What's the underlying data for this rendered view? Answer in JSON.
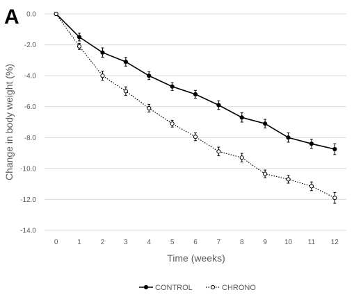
{
  "panel_label": "A",
  "chart_data": {
    "type": "line",
    "x": [
      0,
      1,
      2,
      3,
      4,
      5,
      6,
      7,
      8,
      9,
      10,
      11,
      12
    ],
    "xticks": [
      "0",
      "1",
      "2",
      "3",
      "4",
      "5",
      "6",
      "7",
      "8",
      "9",
      "10",
      "11",
      "12"
    ],
    "xlabel": "Time (weeks)",
    "ylabel": "Change in body weight (%)",
    "ylim": [
      -14,
      0
    ],
    "yticks": [
      "0.0",
      "-2.0",
      "-4.0",
      "-6.0",
      "-8.0",
      "-10.0",
      "-12.0",
      "-14.0"
    ],
    "grid": true,
    "legend_position": "bottom",
    "series": [
      {
        "name": "CONTROL",
        "values": [
          0,
          -1.5,
          -2.5,
          -3.1,
          -4.0,
          -4.7,
          -5.2,
          -5.9,
          -6.7,
          -7.1,
          -8.0,
          -8.4,
          -8.75
        ],
        "errors": [
          0,
          0.25,
          0.3,
          0.28,
          0.25,
          0.25,
          0.25,
          0.28,
          0.3,
          0.28,
          0.3,
          0.3,
          0.35
        ],
        "line_style": "solid",
        "marker": "filled-circle",
        "color": "#000000"
      },
      {
        "name": "CHRONO",
        "values": [
          0,
          -2.1,
          -4.0,
          -5.0,
          -6.1,
          -7.1,
          -7.95,
          -8.9,
          -9.3,
          -10.35,
          -10.7,
          -11.15,
          -11.9
        ],
        "errors": [
          0,
          0.2,
          0.3,
          0.28,
          0.25,
          0.22,
          0.25,
          0.28,
          0.28,
          0.25,
          0.25,
          0.28,
          0.35
        ],
        "line_style": "dotted",
        "marker": "open-circle",
        "color": "#000000"
      }
    ]
  }
}
